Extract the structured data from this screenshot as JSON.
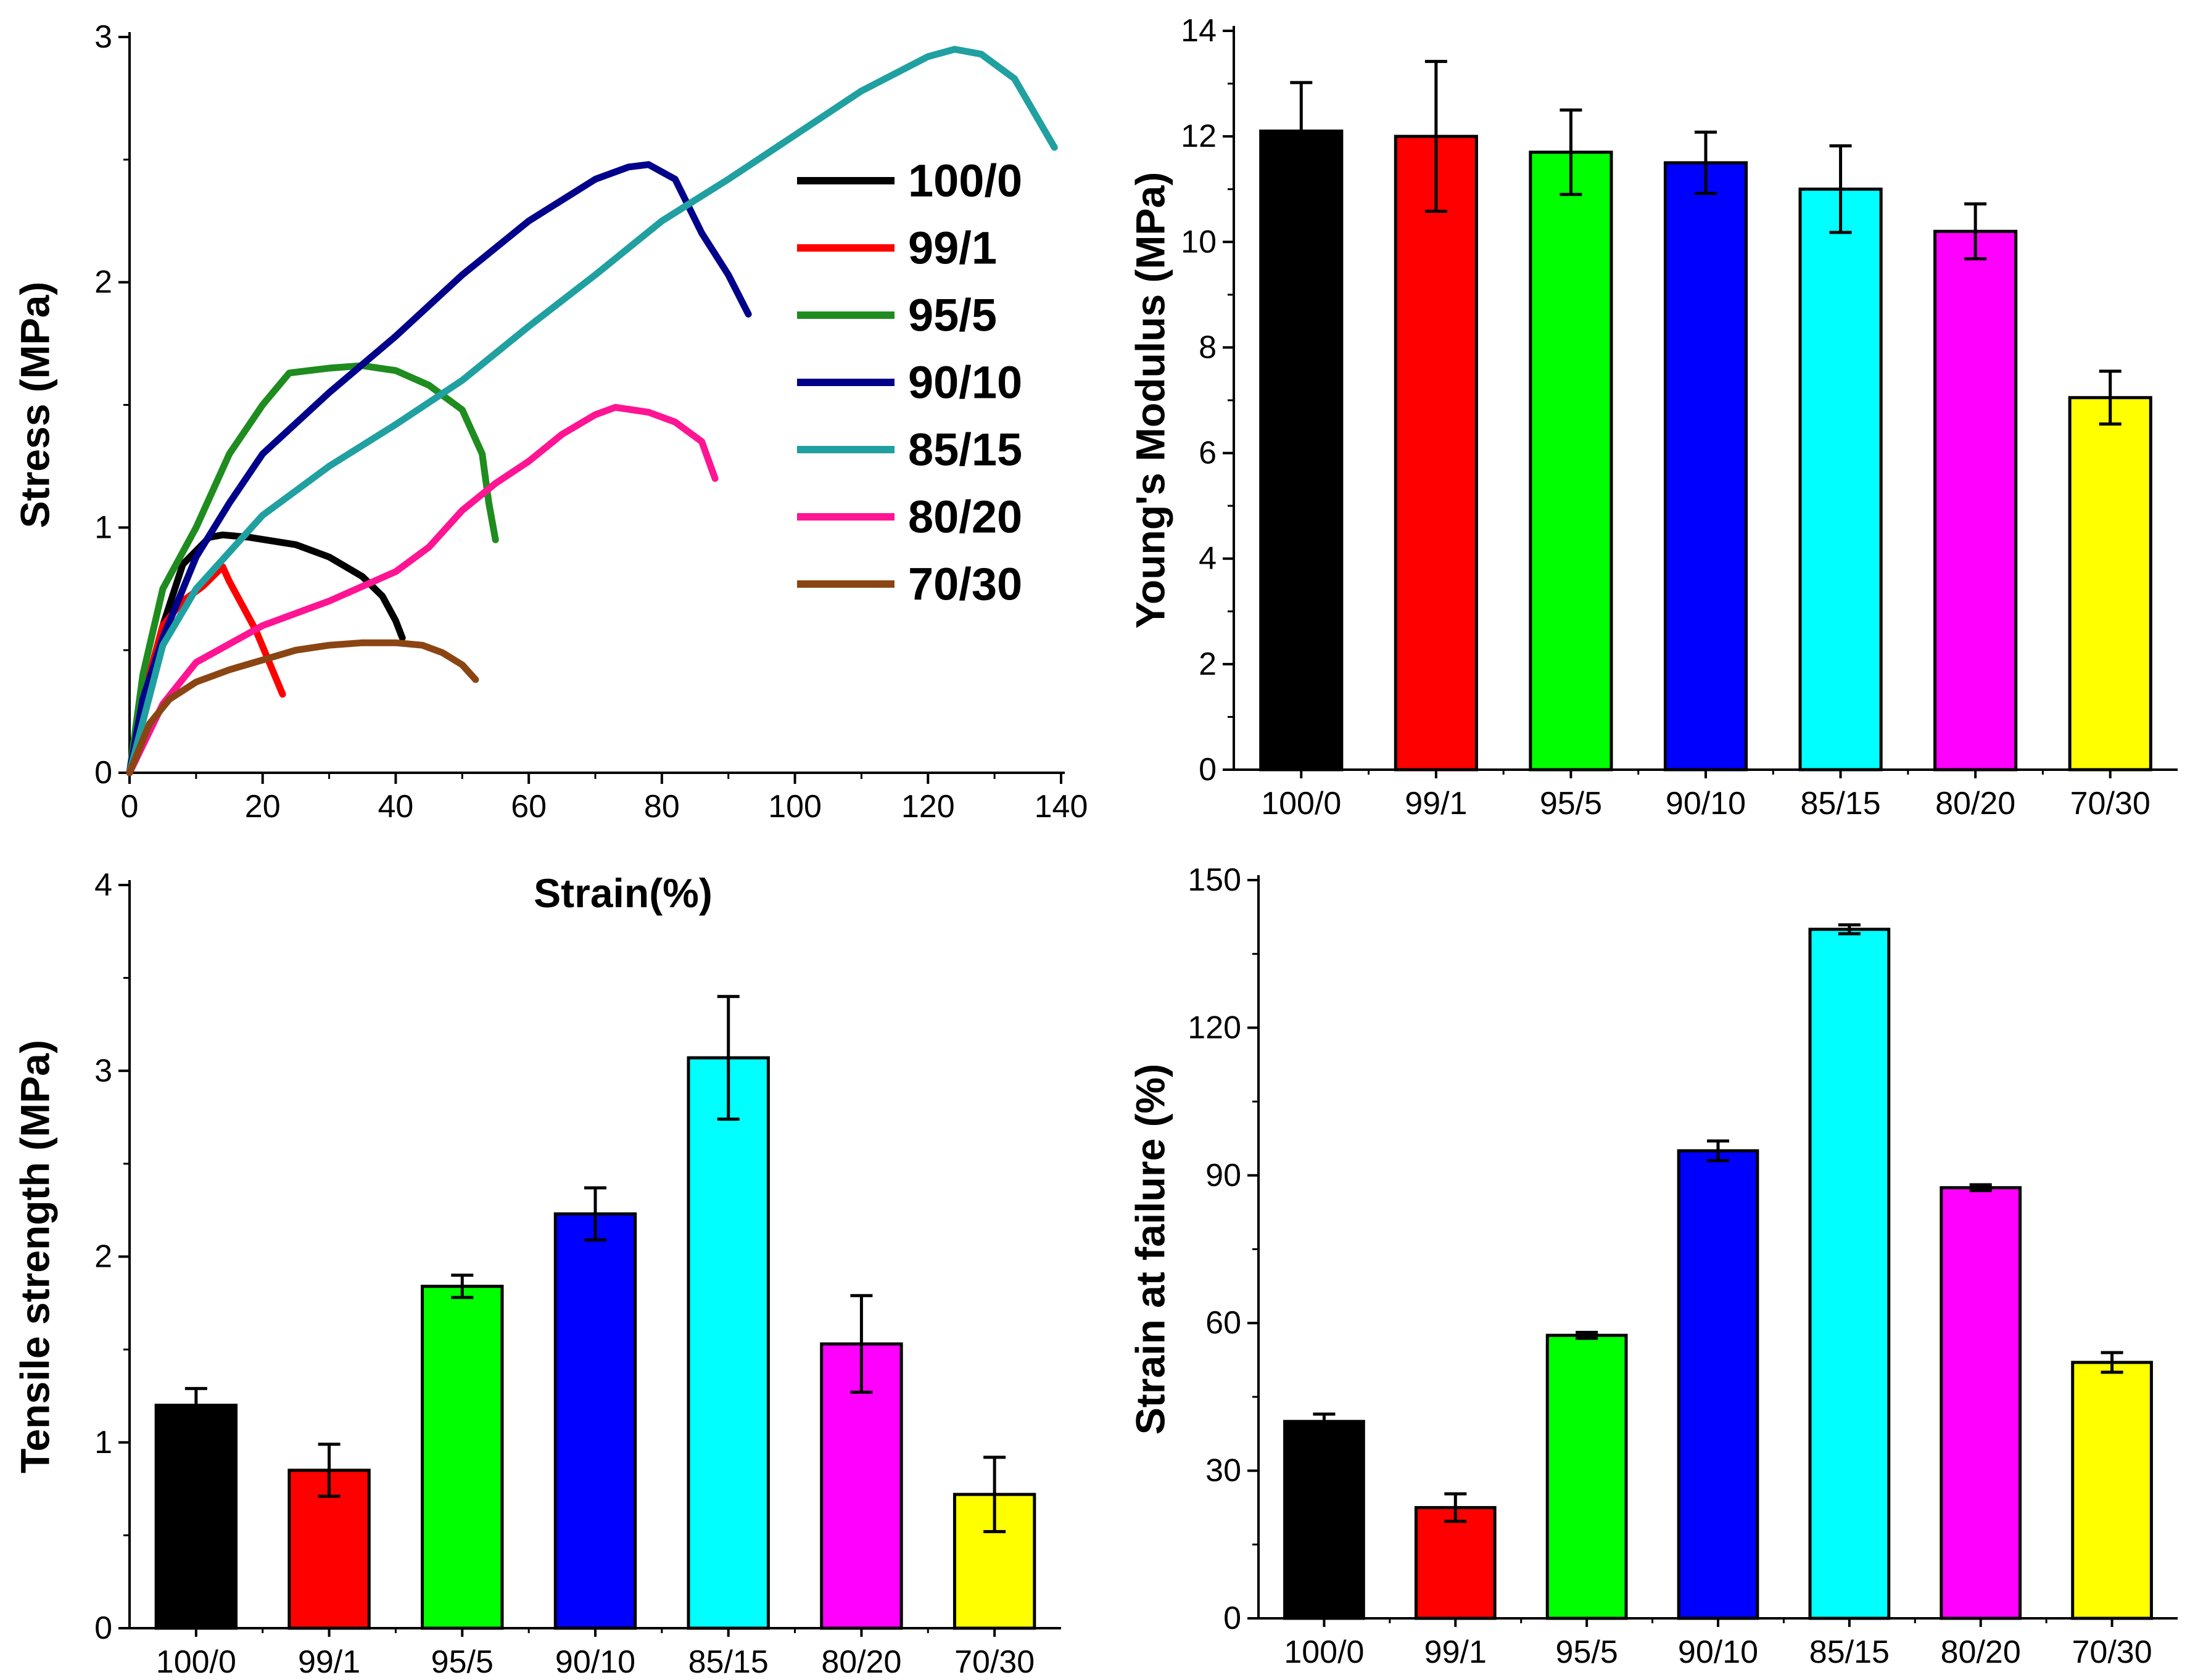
{
  "chart_data": [
    {
      "type": "line",
      "id": "stress-strain",
      "xlabel": "Strain(%)",
      "ylabel": "Stress (MPa)",
      "xlim": [
        0,
        140
      ],
      "ylim": [
        0,
        3
      ],
      "xticks": [
        0,
        20,
        40,
        60,
        80,
        100,
        120,
        140
      ],
      "yticks": [
        0,
        1,
        2,
        3
      ],
      "legend_position": "top-right",
      "series": [
        {
          "name": "100/0",
          "color": "#000000",
          "x": [
            0,
            2,
            5,
            8,
            12,
            14,
            18,
            25,
            30,
            35,
            38,
            40,
            41
          ],
          "y": [
            0,
            0.3,
            0.6,
            0.85,
            0.96,
            0.97,
            0.96,
            0.93,
            0.88,
            0.8,
            0.72,
            0.62,
            0.55
          ]
        },
        {
          "name": "99/1",
          "color": "#ff0000",
          "x": [
            0,
            2,
            5,
            8,
            11,
            14,
            15,
            17,
            19,
            21,
            23
          ],
          "y": [
            0,
            0.3,
            0.6,
            0.7,
            0.76,
            0.84,
            0.78,
            0.68,
            0.58,
            0.45,
            0.32
          ]
        },
        {
          "name": "95/5",
          "color": "#1e8c1e",
          "x": [
            0,
            2,
            5,
            10,
            15,
            20,
            24,
            27,
            30,
            35,
            40,
            45,
            50,
            53,
            54,
            55
          ],
          "y": [
            0,
            0.4,
            0.75,
            1.0,
            1.3,
            1.5,
            1.63,
            1.64,
            1.65,
            1.66,
            1.64,
            1.58,
            1.48,
            1.3,
            1.1,
            0.95
          ]
        },
        {
          "name": "90/10",
          "color": "#00008b",
          "x": [
            0,
            2,
            5,
            10,
            15,
            20,
            30,
            40,
            50,
            60,
            70,
            75,
            78,
            82,
            86,
            90,
            93
          ],
          "y": [
            0,
            0.3,
            0.55,
            0.88,
            1.1,
            1.3,
            1.55,
            1.78,
            2.03,
            2.25,
            2.42,
            2.47,
            2.48,
            2.42,
            2.2,
            2.03,
            1.87
          ]
        },
        {
          "name": "85/15",
          "color": "#20a0a0",
          "x": [
            0,
            5,
            10,
            20,
            30,
            40,
            50,
            60,
            70,
            80,
            90,
            100,
            110,
            120,
            124,
            128,
            133,
            139
          ],
          "y": [
            0,
            0.52,
            0.75,
            1.05,
            1.25,
            1.42,
            1.6,
            1.82,
            2.03,
            2.25,
            2.42,
            2.6,
            2.78,
            2.92,
            2.95,
            2.93,
            2.83,
            2.55
          ]
        },
        {
          "name": "80/20",
          "color": "#ff1493",
          "x": [
            0,
            5,
            10,
            20,
            30,
            40,
            45,
            50,
            55,
            60,
            65,
            70,
            73,
            78,
            82,
            86,
            88
          ],
          "y": [
            0,
            0.28,
            0.45,
            0.6,
            0.7,
            0.82,
            0.92,
            1.07,
            1.18,
            1.27,
            1.38,
            1.46,
            1.49,
            1.47,
            1.43,
            1.35,
            1.2
          ]
        },
        {
          "name": "70/30",
          "color": "#8b4513",
          "x": [
            0,
            3,
            6,
            10,
            15,
            20,
            25,
            30,
            35,
            40,
            44,
            47,
            50,
            52
          ],
          "y": [
            0,
            0.2,
            0.3,
            0.37,
            0.42,
            0.46,
            0.5,
            0.52,
            0.53,
            0.53,
            0.52,
            0.49,
            0.44,
            0.38
          ]
        }
      ]
    },
    {
      "type": "bar",
      "id": "youngs-modulus",
      "ylabel": "Young's Modulus (MPa)",
      "ylim": [
        0,
        14
      ],
      "yticks": [
        0,
        2,
        4,
        6,
        8,
        10,
        12,
        14
      ],
      "categories": [
        "100/0",
        "99/1",
        "95/5",
        "90/10",
        "85/15",
        "80/20",
        "70/30"
      ],
      "values": [
        12.1,
        12.0,
        11.7,
        11.5,
        11.0,
        10.2,
        7.05
      ],
      "errors": [
        0.92,
        1.42,
        0.8,
        0.58,
        0.82,
        0.52,
        0.5
      ],
      "colors": [
        "#000000",
        "#ff0000",
        "#00ff00",
        "#0000ff",
        "#00ffff",
        "#ff00ff",
        "#ffff00"
      ]
    },
    {
      "type": "bar",
      "id": "tensile-strength",
      "ylabel": "Tensile strength (MPa)",
      "ylim": [
        0,
        4
      ],
      "yticks": [
        0,
        1,
        2,
        3,
        4
      ],
      "categories": [
        "100/0",
        "99/1",
        "95/5",
        "90/10",
        "85/15",
        "80/20",
        "70/30"
      ],
      "values": [
        1.2,
        0.85,
        1.84,
        2.23,
        3.07,
        1.53,
        0.72
      ],
      "errors": [
        0.09,
        0.14,
        0.06,
        0.14,
        0.33,
        0.26,
        0.2
      ],
      "colors": [
        "#000000",
        "#ff0000",
        "#00ff00",
        "#0000ff",
        "#00ffff",
        "#ff00ff",
        "#ffff00"
      ]
    },
    {
      "type": "bar",
      "id": "strain-at-failure",
      "ylabel": "Strain at failure (%)",
      "ylim": [
        0,
        150
      ],
      "yticks": [
        0,
        30,
        60,
        90,
        120,
        150
      ],
      "categories": [
        "100/0",
        "99/1",
        "95/5",
        "90/10",
        "85/15",
        "80/20",
        "70/30"
      ],
      "values": [
        40,
        22.5,
        57.5,
        95,
        140,
        87.5,
        52
      ],
      "errors": [
        1.5,
        2.8,
        0.6,
        2.0,
        0.9,
        0.6,
        2.0
      ],
      "colors": [
        "#000000",
        "#ff0000",
        "#00ff00",
        "#0000ff",
        "#00ffff",
        "#ff00ff",
        "#ffff00"
      ]
    }
  ]
}
